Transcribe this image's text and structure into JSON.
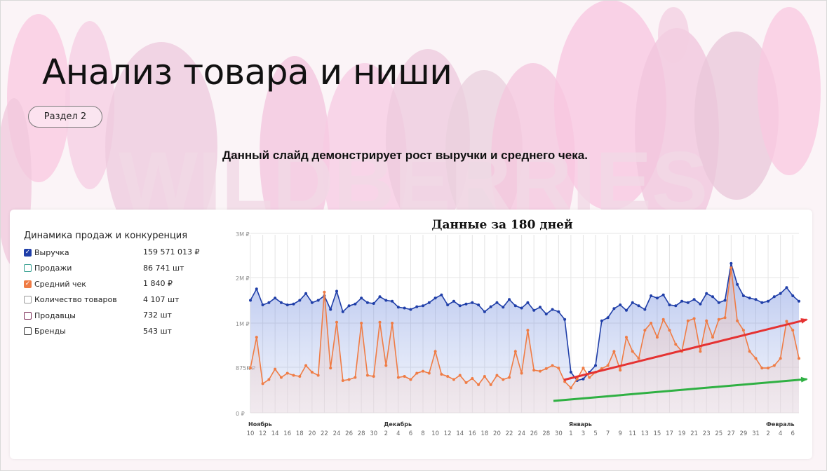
{
  "slide": {
    "title": "Анализ товара и ниши",
    "section_label": "Раздел 2",
    "subtitle": "Данный слайд демонстрирует рост выручки и среднего чека.",
    "background_watermark": "WILDBERRIES"
  },
  "legend": {
    "title": "Динамика продаж и конкуренция",
    "items": [
      {
        "label": "Выручка",
        "value": "159 571 013 ₽",
        "checked": true,
        "color": "#1f3ea8"
      },
      {
        "label": "Продажи",
        "value": "86 741 шт",
        "checked": false,
        "color": "#2e9c8c"
      },
      {
        "label": "Средний чек",
        "value": "1 840 ₽",
        "checked": true,
        "color": "#ef7c45"
      },
      {
        "label": "Количество товаров",
        "value": "4 107 шт",
        "checked": false,
        "color": "#9a9a9a"
      },
      {
        "label": "Продавцы",
        "value": "732 шт",
        "checked": false,
        "color": "#7a2a55"
      },
      {
        "label": "Бренды",
        "value": "543 шт",
        "checked": false,
        "color": "#333333"
      }
    ]
  },
  "chart_data": {
    "type": "line",
    "title": "Данные за 180 дней",
    "xlabel": "",
    "ylabel": "",
    "grid": true,
    "y_tick_labels": [
      "0 ₽",
      "875K ₽",
      "1M ₽",
      "2M ₽",
      "3M ₽"
    ],
    "x_tick_labels": [
      "10",
      "12",
      "14",
      "16",
      "18",
      "20",
      "22",
      "24",
      "26",
      "28",
      "30",
      "2",
      "4",
      "6",
      "8",
      "10",
      "12",
      "14",
      "16",
      "18",
      "20",
      "22",
      "24",
      "26",
      "28",
      "30",
      "1",
      "3",
      "5",
      "7",
      "9",
      "11",
      "13",
      "15",
      "17",
      "19",
      "21",
      "23",
      "25",
      "27",
      "29",
      "31",
      "2",
      "4",
      "6"
    ],
    "month_labels": [
      {
        "label": "Ноябрь",
        "tick_index": 0
      },
      {
        "label": "Декабрь",
        "tick_index": 11
      },
      {
        "label": "Январь",
        "tick_index": 26
      },
      {
        "label": "Февраль",
        "tick_index": 42
      }
    ],
    "x": [
      "2023-11-10",
      "2023-11-11",
      "2023-11-12",
      "2023-11-13",
      "2023-11-14",
      "2023-11-15",
      "2023-11-16",
      "2023-11-17",
      "2023-11-18",
      "2023-11-19",
      "2023-11-20",
      "2023-11-21",
      "2023-11-22",
      "2023-11-23",
      "2023-11-24",
      "2023-11-25",
      "2023-11-26",
      "2023-11-27",
      "2023-11-28",
      "2023-11-29",
      "2023-11-30",
      "2023-12-01",
      "2023-12-02",
      "2023-12-03",
      "2023-12-04",
      "2023-12-05",
      "2023-12-06",
      "2023-12-07",
      "2023-12-08",
      "2023-12-09",
      "2023-12-10",
      "2023-12-11",
      "2023-12-12",
      "2023-12-13",
      "2023-12-14",
      "2023-12-15",
      "2023-12-16",
      "2023-12-17",
      "2023-12-18",
      "2023-12-19",
      "2023-12-20",
      "2023-12-21",
      "2023-12-22",
      "2023-12-23",
      "2023-12-24",
      "2023-12-25",
      "2023-12-26",
      "2023-12-27",
      "2023-12-28",
      "2023-12-29",
      "2023-12-30",
      "2023-12-31",
      "2024-01-01",
      "2024-01-02",
      "2024-01-03",
      "2024-01-04",
      "2024-01-05",
      "2024-01-06",
      "2024-01-07",
      "2024-01-08",
      "2024-01-09",
      "2024-01-10",
      "2024-01-11",
      "2024-01-12",
      "2024-01-13",
      "2024-01-14",
      "2024-01-15",
      "2024-01-16",
      "2024-01-17",
      "2024-01-18",
      "2024-01-19",
      "2024-01-20",
      "2024-01-21",
      "2024-01-22",
      "2024-01-23",
      "2024-01-24",
      "2024-01-25",
      "2024-01-26",
      "2024-01-27",
      "2024-01-28",
      "2024-01-29",
      "2024-01-30",
      "2024-01-31",
      "2024-02-01",
      "2024-02-02",
      "2024-02-03",
      "2024-02-04",
      "2024-02-05",
      "2024-02-06",
      "2024-02-07"
    ],
    "series": [
      {
        "name": "Выручка",
        "color": "#1f3ea8",
        "values": [
          1.5,
          1.75,
          1.4,
          1.45,
          1.55,
          1.45,
          1.4,
          1.42,
          1.5,
          1.65,
          1.45,
          1.5,
          1.6,
          1.3,
          1.7,
          1.25,
          1.38,
          1.42,
          1.55,
          1.45,
          1.43,
          1.58,
          1.5,
          1.48,
          1.35,
          1.33,
          1.3,
          1.36,
          1.38,
          1.45,
          1.55,
          1.62,
          1.4,
          1.48,
          1.38,
          1.42,
          1.45,
          1.4,
          1.25,
          1.36,
          1.45,
          1.35,
          1.52,
          1.38,
          1.33,
          1.45,
          1.28,
          1.35,
          1.2,
          1.3,
          1.25,
          1.08,
          0.78,
          0.62,
          0.65,
          0.78,
          0.88,
          1.05,
          1.12,
          1.32,
          1.4,
          1.28,
          1.45,
          1.38,
          1.3,
          1.6,
          1.55,
          1.62,
          1.4,
          1.38,
          1.48,
          1.45,
          1.52,
          1.42,
          1.65,
          1.58,
          1.45,
          1.5,
          2.32,
          1.85,
          1.6,
          1.55,
          1.52,
          1.45,
          1.48,
          1.58,
          1.65,
          1.78,
          1.6,
          1.48
        ]
      },
      {
        "name": "Средний чек",
        "color": "#ef7c45",
        "values": [
          0.86,
          0.96,
          0.56,
          0.64,
          0.84,
          0.68,
          0.76,
          0.72,
          0.7,
          0.88,
          0.78,
          0.72,
          1.68,
          0.86,
          1.02,
          0.62,
          0.64,
          0.68,
          1.0,
          0.72,
          0.7,
          1.02,
          0.88,
          1.0,
          0.68,
          0.7,
          0.64,
          0.76,
          0.8,
          0.76,
          0.92,
          0.74,
          0.7,
          0.64,
          0.72,
          0.58,
          0.66,
          0.54,
          0.7,
          0.54,
          0.72,
          0.64,
          0.68,
          0.92,
          0.76,
          0.98,
          0.82,
          0.8,
          0.85,
          0.88,
          0.86,
          0.6,
          0.48,
          0.65,
          0.86,
          0.68,
          0.78,
          0.85,
          0.88,
          0.92,
          0.82,
          0.96,
          0.92,
          0.9,
          0.98,
          1.0,
          0.96,
          1.08,
          0.98,
          0.94,
          0.92,
          1.05,
          1.1,
          0.92,
          1.05,
          0.96,
          1.08,
          1.12,
          2.22,
          1.05,
          0.98,
          0.92,
          0.9,
          0.86,
          0.86,
          0.88,
          0.9,
          1.04,
          0.98,
          0.9
        ]
      }
    ]
  }
}
